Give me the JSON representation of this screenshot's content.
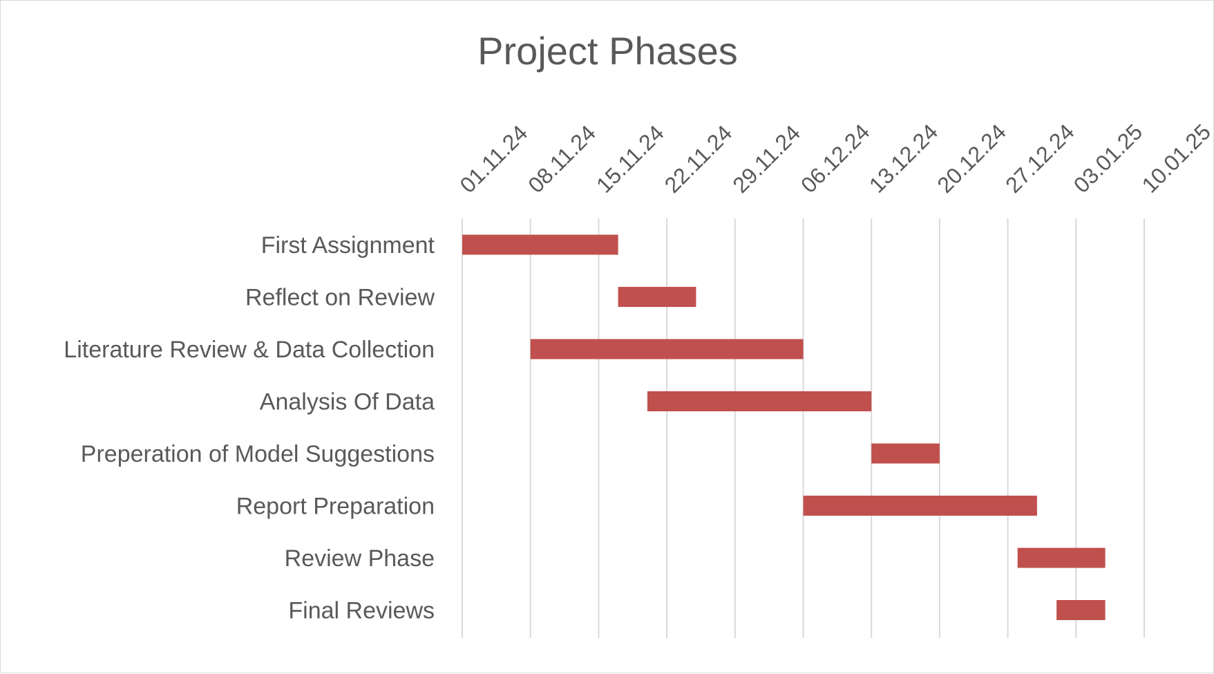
{
  "chart_data": {
    "type": "bar",
    "title": "Project Phases",
    "x_tick_labels": [
      "01.11.24",
      "08.11.24",
      "15.11.24",
      "22.11.24",
      "29.11.24",
      "06.12.24",
      "13.12.24",
      "20.12.24",
      "27.12.24",
      "03.01.25",
      "10.01.25"
    ],
    "x_range": [
      "01.11.24",
      "10.01.25"
    ],
    "tick_interval_days": 7,
    "grid": "vertical",
    "bar_color": "#c0504d",
    "tasks": [
      {
        "name": "First Assignment",
        "start": "01.11.24",
        "end": "17.11.24"
      },
      {
        "name": "Reflect on Review",
        "start": "17.11.24",
        "end": "25.11.24"
      },
      {
        "name": "Literature Review & Data Collection",
        "start": "08.11.24",
        "end": "06.12.24"
      },
      {
        "name": "Analysis Of Data",
        "start": "20.11.24",
        "end": "13.12.24"
      },
      {
        "name": "Preperation of Model Suggestions",
        "start": "13.12.24",
        "end": "20.12.24"
      },
      {
        "name": "Report Preparation",
        "start": "06.12.24",
        "end": "30.12.24"
      },
      {
        "name": "Review Phase",
        "start": "28.12.24",
        "end": "06.01.25"
      },
      {
        "name": "Final Reviews",
        "start": "01.01.25",
        "end": "06.01.25"
      }
    ]
  }
}
